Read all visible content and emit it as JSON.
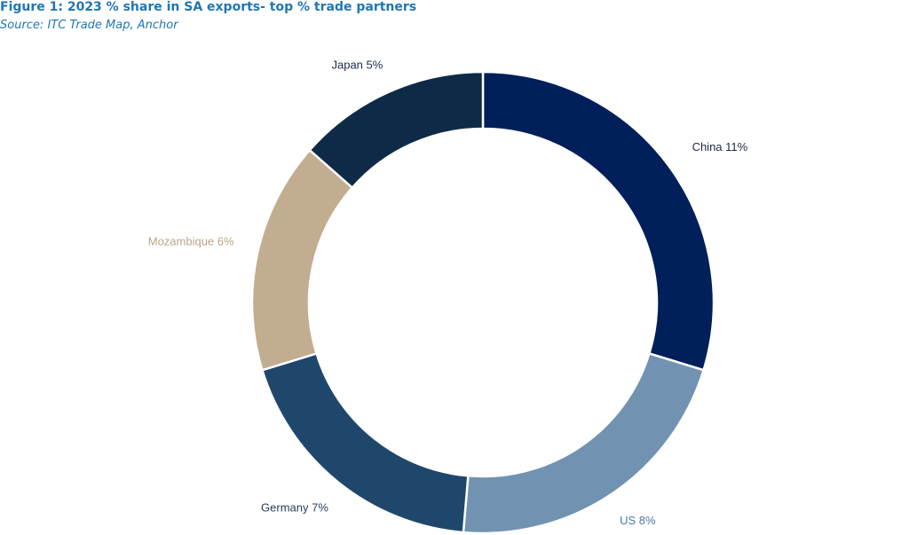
{
  "figure": {
    "title": "Figure 1: 2023 % share in SA exports- top % trade partners",
    "source": "Source: ITC Trade Map, Anchor"
  },
  "chart_data": {
    "type": "pie",
    "donut": true,
    "unit": "%",
    "legend": "none",
    "start_angle_deg": 0,
    "direction": "clockwise",
    "slices": [
      {
        "name": "China",
        "value": 11,
        "label": "China 11%",
        "color": "#001f5b",
        "label_color": "#1b2a4a"
      },
      {
        "name": "US",
        "value": 8,
        "label": "US 8%",
        "color": "#7193b1",
        "label_color": "#4f79a6"
      },
      {
        "name": "Germany",
        "value": 7,
        "label": "Germany 7%",
        "color": "#1f476c",
        "label_color": "#2a3f5c"
      },
      {
        "name": "Mozambique",
        "value": 6,
        "label": "Mozambique 6%",
        "color": "#c2ad91",
        "label_color": "#b9a58a"
      },
      {
        "name": "Japan",
        "value": 5,
        "label": "Japan 5%",
        "color": "#0e2a47",
        "label_color": "#1b2a4a"
      }
    ]
  }
}
